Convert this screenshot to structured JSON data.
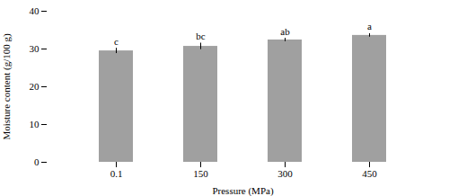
{
  "chart_data": {
    "type": "bar",
    "categories": [
      "0.1",
      "150",
      "300",
      "450"
    ],
    "values": [
      29.5,
      30.7,
      32.4,
      33.6
    ],
    "errors": [
      0.7,
      0.85,
      0.45,
      0.45
    ],
    "letters": [
      "c",
      "bc",
      "ab",
      "a"
    ],
    "color": "#a0a0a0",
    "xlabel": "Pressure (MPa)",
    "ylabel": "Moisture content (g/100 g)",
    "ylim": [
      0,
      40
    ],
    "yticks": [
      0,
      10,
      20,
      30,
      40
    ],
    "grid": false
  }
}
